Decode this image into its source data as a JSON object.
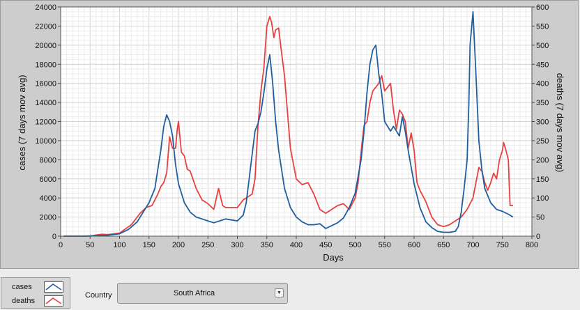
{
  "colors": {
    "cases": "#1f5fa0",
    "deaths": "#e84040",
    "panel": "#cdcdcd",
    "plot_bg": "#ffffff"
  },
  "legend": {
    "position": "bottom-left",
    "cases_label": "cases",
    "deaths_label": "deaths"
  },
  "controls": {
    "country_label": "Country",
    "country_value": "South Africa",
    "dropdown_icon": "chevron-down-icon"
  },
  "chart_data": {
    "type": "line",
    "title": "",
    "xlabel": "Days",
    "ylabel": "cases  (7 days mov avg)",
    "y2label": "deaths  (7 days mov avg)",
    "xlim": [
      0,
      800
    ],
    "ylim": [
      0,
      24000
    ],
    "y2lim": [
      0,
      600
    ],
    "grid": true,
    "x_ticks": [
      0,
      50,
      100,
      150,
      200,
      250,
      300,
      350,
      400,
      450,
      500,
      550,
      600,
      650,
      700,
      750,
      800
    ],
    "y_ticks": [
      0,
      2000,
      4000,
      6000,
      8000,
      10000,
      12000,
      14000,
      16000,
      18000,
      20000,
      22000,
      24000
    ],
    "y2_ticks": [
      0,
      50,
      100,
      150,
      200,
      250,
      300,
      350,
      400,
      450,
      500,
      550,
      600
    ],
    "series": [
      {
        "name": "cases",
        "axis": "left",
        "x": [
          5,
          40,
          60,
          80,
          100,
          115,
          130,
          140,
          150,
          160,
          165,
          170,
          175,
          180,
          185,
          190,
          195,
          200,
          210,
          220,
          230,
          240,
          250,
          260,
          270,
          280,
          290,
          300,
          310,
          315,
          320,
          330,
          335,
          340,
          345,
          350,
          355,
          360,
          365,
          370,
          375,
          380,
          390,
          400,
          410,
          420,
          430,
          440,
          450,
          460,
          470,
          480,
          490,
          500,
          510,
          515,
          520,
          525,
          530,
          535,
          540,
          545,
          550,
          555,
          560,
          565,
          570,
          575,
          580,
          585,
          590,
          600,
          610,
          620,
          630,
          640,
          650,
          660,
          670,
          675,
          680,
          681,
          685,
          690,
          693,
          695,
          700,
          705,
          710,
          715,
          720,
          730,
          740,
          750,
          760,
          768
        ],
        "y": [
          0,
          0,
          50,
          100,
          250,
          700,
          1500,
          2500,
          3500,
          5000,
          7000,
          9000,
          11500,
          12700,
          12000,
          10500,
          7500,
          5500,
          3500,
          2500,
          2000,
          1800,
          1600,
          1400,
          1600,
          1800,
          1700,
          1600,
          2200,
          3500,
          6000,
          11000,
          11800,
          13000,
          15000,
          17500,
          19000,
          16000,
          12000,
          9000,
          7000,
          5000,
          3000,
          2000,
          1500,
          1200,
          1200,
          1300,
          800,
          1100,
          1400,
          1900,
          3000,
          4500,
          8000,
          11000,
          15000,
          18000,
          19500,
          20000,
          17000,
          15000,
          12000,
          11500,
          11000,
          11500,
          11000,
          10500,
          12500,
          11000,
          9000,
          5500,
          3000,
          1500,
          900,
          500,
          400,
          400,
          500,
          1000,
          2500,
          3000,
          5000,
          8000,
          14000,
          20000,
          23500,
          17000,
          10000,
          7000,
          5000,
          3500,
          2800,
          2600,
          2300,
          2000
        ]
      },
      {
        "name": "deaths",
        "axis": "right",
        "x": [
          5,
          50,
          60,
          70,
          80,
          100,
          120,
          135,
          145,
          155,
          165,
          170,
          175,
          180,
          185,
          190,
          195,
          198,
          200,
          205,
          210,
          215,
          220,
          230,
          240,
          250,
          260,
          268,
          275,
          280,
          290,
          300,
          310,
          320,
          325,
          330,
          335,
          340,
          345,
          350,
          355,
          358,
          362,
          365,
          370,
          375,
          380,
          390,
          400,
          410,
          420,
          430,
          440,
          450,
          460,
          470,
          480,
          490,
          500,
          505,
          510,
          515,
          520,
          525,
          530,
          535,
          540,
          545,
          550,
          555,
          560,
          565,
          570,
          575,
          580,
          585,
          590,
          595,
          600,
          605,
          610,
          620,
          630,
          640,
          650,
          660,
          670,
          680,
          690,
          700,
          710,
          715,
          720,
          725,
          730,
          735,
          740,
          745,
          750,
          752,
          755,
          760,
          763,
          768
        ],
        "y": [
          0,
          0,
          3,
          5,
          4,
          8,
          30,
          60,
          75,
          80,
          110,
          130,
          140,
          165,
          260,
          230,
          230,
          280,
          300,
          220,
          210,
          175,
          170,
          125,
          95,
          85,
          70,
          125,
          80,
          75,
          75,
          75,
          95,
          105,
          110,
          150,
          290,
          380,
          440,
          550,
          575,
          560,
          520,
          540,
          545,
          480,
          420,
          230,
          150,
          135,
          140,
          110,
          70,
          60,
          70,
          80,
          85,
          70,
          100,
          140,
          220,
          290,
          300,
          350,
          380,
          390,
          400,
          420,
          380,
          390,
          400,
          330,
          280,
          330,
          320,
          300,
          230,
          270,
          225,
          140,
          120,
          90,
          50,
          30,
          25,
          30,
          40,
          50,
          70,
          100,
          180,
          170,
          140,
          120,
          140,
          165,
          150,
          200,
          225,
          245,
          230,
          200,
          80,
          80
        ]
      }
    ]
  }
}
